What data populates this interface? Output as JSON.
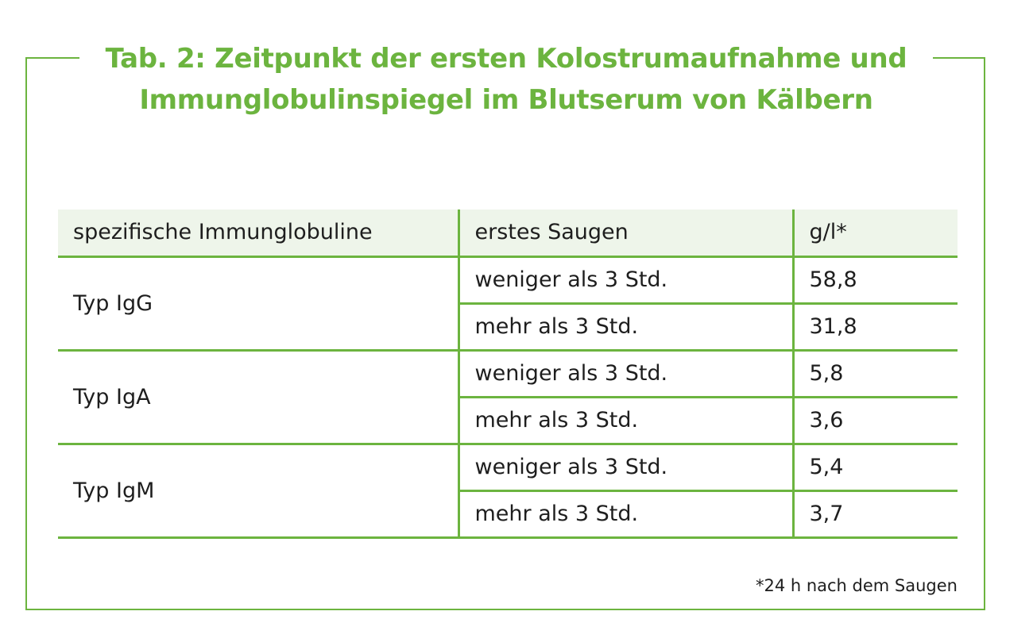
{
  "title": {
    "line1": "Tab. 2: Zeitpunkt der ersten Kolostrumaufnahme und",
    "line2": "Immunglobulinspiegel im Blutserum von Kälbern"
  },
  "table": {
    "headers": [
      "spezifische Immunglobuline",
      "erstes Saugen",
      "g/l*"
    ],
    "groups": [
      {
        "type": "Typ IgG",
        "rows": [
          {
            "time": "weniger als 3 Std.",
            "value": "58,8"
          },
          {
            "time": "mehr als 3 Std.",
            "value": "31,8"
          }
        ]
      },
      {
        "type": "Typ IgA",
        "rows": [
          {
            "time": "weniger als 3 Std.",
            "value": "5,8"
          },
          {
            "time": "mehr als 3 Std.",
            "value": "3,6"
          }
        ]
      },
      {
        "type": "Typ IgM",
        "rows": [
          {
            "time": "weniger als 3 Std.",
            "value": "5,4"
          },
          {
            "time": "mehr als 3 Std.",
            "value": "3,7"
          }
        ]
      }
    ]
  },
  "footnote": "*24 h nach dem Saugen",
  "colors": {
    "accent": "#6cb43f",
    "header_bg": "#eef5ea",
    "text": "#1e1e1e"
  }
}
